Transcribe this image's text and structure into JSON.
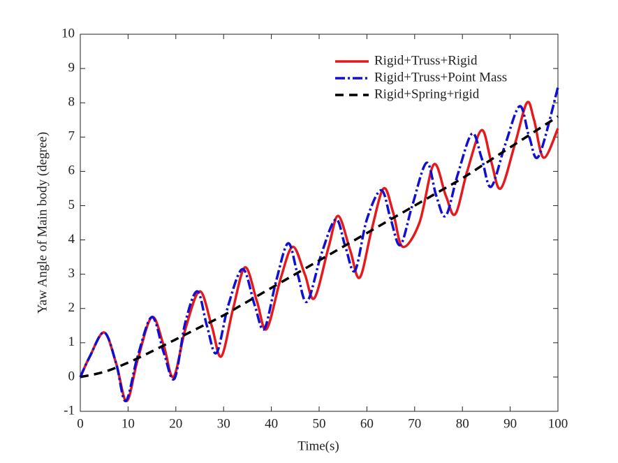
{
  "chart_data": {
    "type": "line",
    "xlabel": "Time(s)",
    "ylabel": "Yaw Angle of Main body (degree)",
    "xlim": [
      0,
      100
    ],
    "xticks": [
      0,
      10,
      20,
      30,
      40,
      50,
      60,
      70,
      80,
      90,
      100
    ],
    "ylim": [
      -1,
      10
    ],
    "yticks": [
      -1,
      0,
      1,
      2,
      3,
      4,
      5,
      6,
      7,
      8,
      9,
      10
    ],
    "legend": "upper right",
    "series": [
      {
        "name": "Rigid+Truss+Rigid",
        "color": "#e41a1c",
        "dash": "solid",
        "x": [
          0,
          2,
          5,
          7.5,
          9.7,
          12,
          15,
          17.5,
          19.5,
          22,
          25,
          27.5,
          29.5,
          32,
          34.5,
          37,
          39,
          42,
          44.5,
          47,
          49,
          52,
          54,
          56.5,
          58.5,
          61,
          63.5,
          65.5,
          67.5,
          71,
          74,
          76.5,
          78.5,
          81,
          84,
          86,
          88,
          91,
          93.5,
          95,
          97,
          100
        ],
        "values": [
          0,
          0.6,
          1.3,
          0.4,
          -0.7,
          0.5,
          1.75,
          0.9,
          0,
          1.4,
          2.5,
          1.5,
          0.6,
          2.0,
          3.2,
          2.2,
          1.4,
          2.9,
          3.8,
          3.0,
          2.3,
          3.8,
          4.7,
          3.7,
          2.9,
          4.3,
          5.5,
          4.8,
          3.8,
          4.5,
          6.2,
          5.3,
          4.75,
          6.0,
          7.2,
          6.3,
          5.5,
          6.8,
          8.0,
          7.5,
          6.4,
          7.25
        ]
      },
      {
        "name": "Rigid+Truss+Point Mass",
        "color": "#1010d0",
        "dash": "dashdot",
        "x": [
          0,
          2,
          5,
          7.5,
          9.5,
          12,
          15,
          17.5,
          19.7,
          22,
          24.5,
          26.5,
          28.5,
          31,
          34,
          36.5,
          38.5,
          41,
          43.5,
          45.5,
          47.5,
          50.5,
          53.5,
          55.5,
          57.5,
          60,
          63,
          65,
          67,
          69.5,
          72.5,
          74.5,
          76.5,
          79,
          82,
          84,
          86,
          89,
          92,
          94,
          96,
          100
        ],
        "values": [
          0,
          0.6,
          1.3,
          0.4,
          -0.7,
          0.6,
          1.75,
          0.7,
          -0.05,
          1.6,
          2.5,
          1.5,
          0.7,
          2.1,
          3.15,
          2.1,
          1.4,
          2.8,
          3.9,
          3.0,
          2.2,
          3.6,
          4.6,
          3.8,
          3.1,
          4.6,
          5.45,
          4.6,
          3.85,
          5.0,
          6.25,
          5.3,
          4.7,
          5.9,
          7.1,
          6.4,
          5.55,
          6.8,
          7.9,
          7.0,
          6.45,
          8.45
        ]
      },
      {
        "name": "Rigid+Spring+rigid",
        "color": "#000000",
        "dash": "dashed",
        "x": [
          0,
          5,
          10,
          15,
          20,
          25,
          30,
          35,
          40,
          45,
          50,
          55,
          60,
          65,
          70,
          75,
          80,
          85,
          90,
          95,
          100
        ],
        "values": [
          0,
          0.15,
          0.42,
          0.75,
          1.1,
          1.45,
          1.8,
          2.2,
          2.6,
          3.0,
          3.4,
          3.8,
          4.2,
          4.6,
          5.0,
          5.4,
          5.8,
          6.25,
          6.7,
          7.15,
          7.6
        ]
      }
    ]
  }
}
